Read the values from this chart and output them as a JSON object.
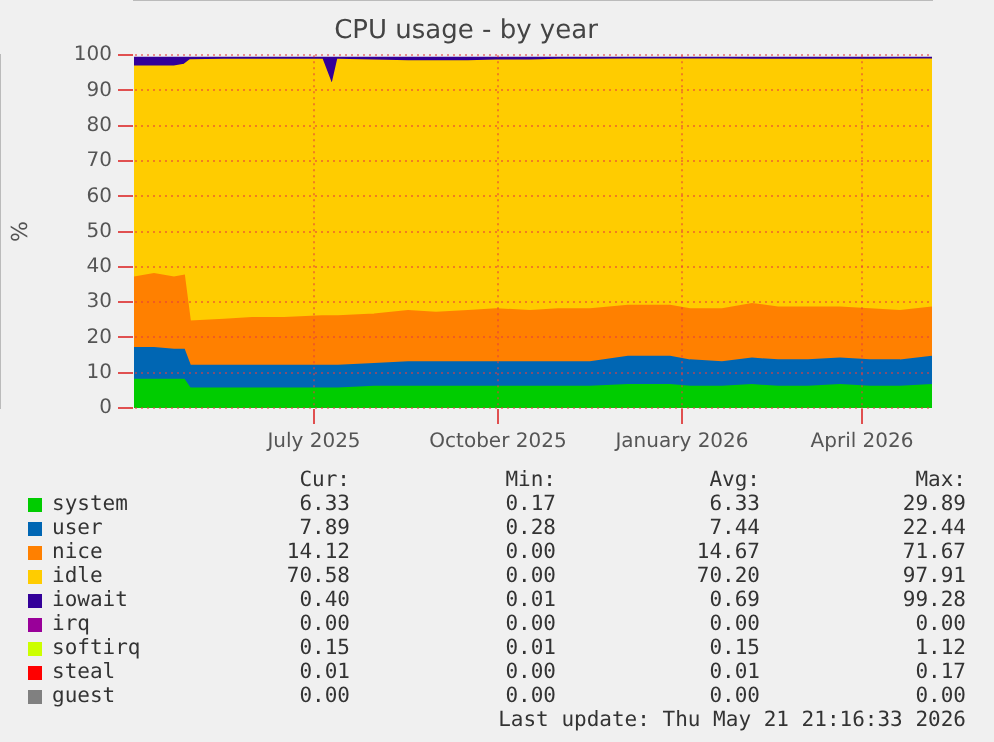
{
  "chart_data": {
    "type": "area",
    "title": "CPU usage - by year",
    "ylabel": "%",
    "stacked": true,
    "x": [
      "2025-04-17",
      "2025-04-27",
      "2025-05-07",
      "2025-05-12",
      "2025-05-15",
      "2025-06-01",
      "2025-06-15",
      "2025-07-01",
      "2025-07-20",
      "2025-07-25",
      "2025-07-28",
      "2025-08-15",
      "2025-09-01",
      "2025-09-15",
      "2025-10-01",
      "2025-10-15",
      "2025-11-01",
      "2025-11-15",
      "2025-12-01",
      "2025-12-20",
      "2026-01-10",
      "2026-01-20",
      "2026-02-05",
      "2026-02-20",
      "2026-03-05",
      "2026-03-20",
      "2026-04-05",
      "2026-04-20",
      "2026-05-05",
      "2026-05-21"
    ],
    "series": [
      {
        "name": "system",
        "color": "#00cc00",
        "values": [
          8,
          8,
          8,
          8,
          5.5,
          5.5,
          5.5,
          5.5,
          5.5,
          5.5,
          5.5,
          6,
          6,
          6,
          6,
          6,
          6,
          6,
          6,
          6.5,
          6.5,
          6,
          6,
          6.5,
          6,
          6,
          6.5,
          6,
          6,
          6.5
        ]
      },
      {
        "name": "user",
        "color": "#0066b3",
        "values": [
          9,
          9,
          8.5,
          8.5,
          6.5,
          6.5,
          6.5,
          6.5,
          6.5,
          6.5,
          6.5,
          6.5,
          7,
          7,
          7,
          7,
          7,
          7,
          7,
          8,
          8,
          7.5,
          7,
          7.5,
          7.5,
          7.5,
          7.5,
          7.5,
          7.5,
          8
        ]
      },
      {
        "name": "nice",
        "color": "#ff8000",
        "values": [
          20,
          21,
          20.5,
          21,
          12.5,
          13,
          13.5,
          13.5,
          14,
          14,
          14,
          14,
          14.5,
          14,
          14.5,
          15,
          14.5,
          15,
          15,
          14.5,
          14.5,
          14.5,
          15,
          15.5,
          15,
          15,
          14.5,
          14.5,
          14,
          14
        ]
      },
      {
        "name": "idle",
        "color": "#ffcc00",
        "values": [
          59.8,
          58.8,
          59.8,
          59.8,
          74.1,
          73.7,
          73.2,
          73.2,
          72.7,
          65.3,
          72.7,
          72,
          70.8,
          71.3,
          70.8,
          70.5,
          71,
          70.7,
          70.7,
          69.8,
          69.8,
          70.8,
          70.8,
          69.2,
          70.2,
          70.2,
          70.2,
          70.7,
          71.3,
          70.3
        ]
      },
      {
        "name": "iowait",
        "color": "#330099",
        "values": [
          2.5,
          2.5,
          2.5,
          2,
          0.7,
          0.6,
          0.6,
          0.6,
          0.6,
          8,
          0.6,
          0.8,
          1,
          1,
          1,
          0.8,
          0.8,
          0.6,
          0.6,
          0.5,
          0.5,
          0.5,
          0.5,
          0.6,
          0.6,
          0.6,
          0.6,
          0.6,
          0.5,
          0.5
        ]
      },
      {
        "name": "irq",
        "color": "#990099",
        "values": [
          null,
          null,
          null,
          null,
          null,
          null,
          null,
          null,
          null,
          null,
          null,
          null,
          null,
          null,
          null,
          null,
          null,
          null,
          null,
          null,
          null,
          null,
          null,
          null,
          null,
          null,
          null,
          null,
          null,
          null
        ]
      },
      {
        "name": "softirq",
        "color": "#ccff00",
        "values": [
          null,
          null,
          null,
          null,
          null,
          null,
          null,
          null,
          null,
          null,
          null,
          null,
          null,
          null,
          null,
          null,
          null,
          null,
          null,
          null,
          null,
          null,
          null,
          null,
          null,
          null,
          null,
          null,
          null,
          null
        ]
      },
      {
        "name": "steal",
        "color": "#ff0000",
        "values": [
          null,
          null,
          null,
          null,
          null,
          null,
          null,
          null,
          null,
          null,
          null,
          null,
          null,
          null,
          null,
          null,
          null,
          null,
          null,
          null,
          null,
          null,
          null,
          null,
          null,
          null,
          null,
          null,
          null,
          null
        ]
      },
      {
        "name": "guest",
        "color": "#808080",
        "values": [
          null,
          null,
          null,
          null,
          null,
          null,
          null,
          null,
          null,
          null,
          null,
          null,
          null,
          null,
          null,
          null,
          null,
          null,
          null,
          null,
          null,
          null,
          null,
          null,
          null,
          null,
          null,
          null,
          null,
          null
        ]
      }
    ],
    "xlim": [
      "2025-04-17",
      "2026-05-21"
    ],
    "xticks": [
      {
        "value": "2025-07-16",
        "label": "July 2025"
      },
      {
        "value": "2025-10-16",
        "label": "October 2025"
      },
      {
        "value": "2026-01-16",
        "label": "January 2026"
      },
      {
        "value": "2026-04-16",
        "label": "April 2026"
      }
    ],
    "ylim": [
      0,
      100
    ],
    "yticks": [
      0,
      10,
      20,
      30,
      40,
      50,
      60,
      70,
      80,
      90,
      100
    ],
    "grid": true,
    "legend": "bottom",
    "annotations": [
      "Cur:",
      "Min:",
      "Avg:",
      "Max:",
      "6.33",
      "0.17",
      "6.33",
      "29.89",
      "7.89",
      "0.28",
      "7.44",
      "22.44",
      "14.12",
      "0.00",
      "14.67",
      "71.67",
      "70.58",
      "0.00",
      "70.20",
      "97.91",
      "0.40",
      "0.01",
      "0.69",
      "99.28",
      "0.00",
      "0.00",
      "0.00",
      "0.00",
      "0.15",
      "0.01",
      "0.15",
      "1.12",
      "0.01",
      "0.00",
      "0.01",
      "0.17",
      "0.00",
      "0.00",
      "0.00",
      "0.00",
      "Last update: Thu May 21 21:16:33 2026"
    ]
  }
}
